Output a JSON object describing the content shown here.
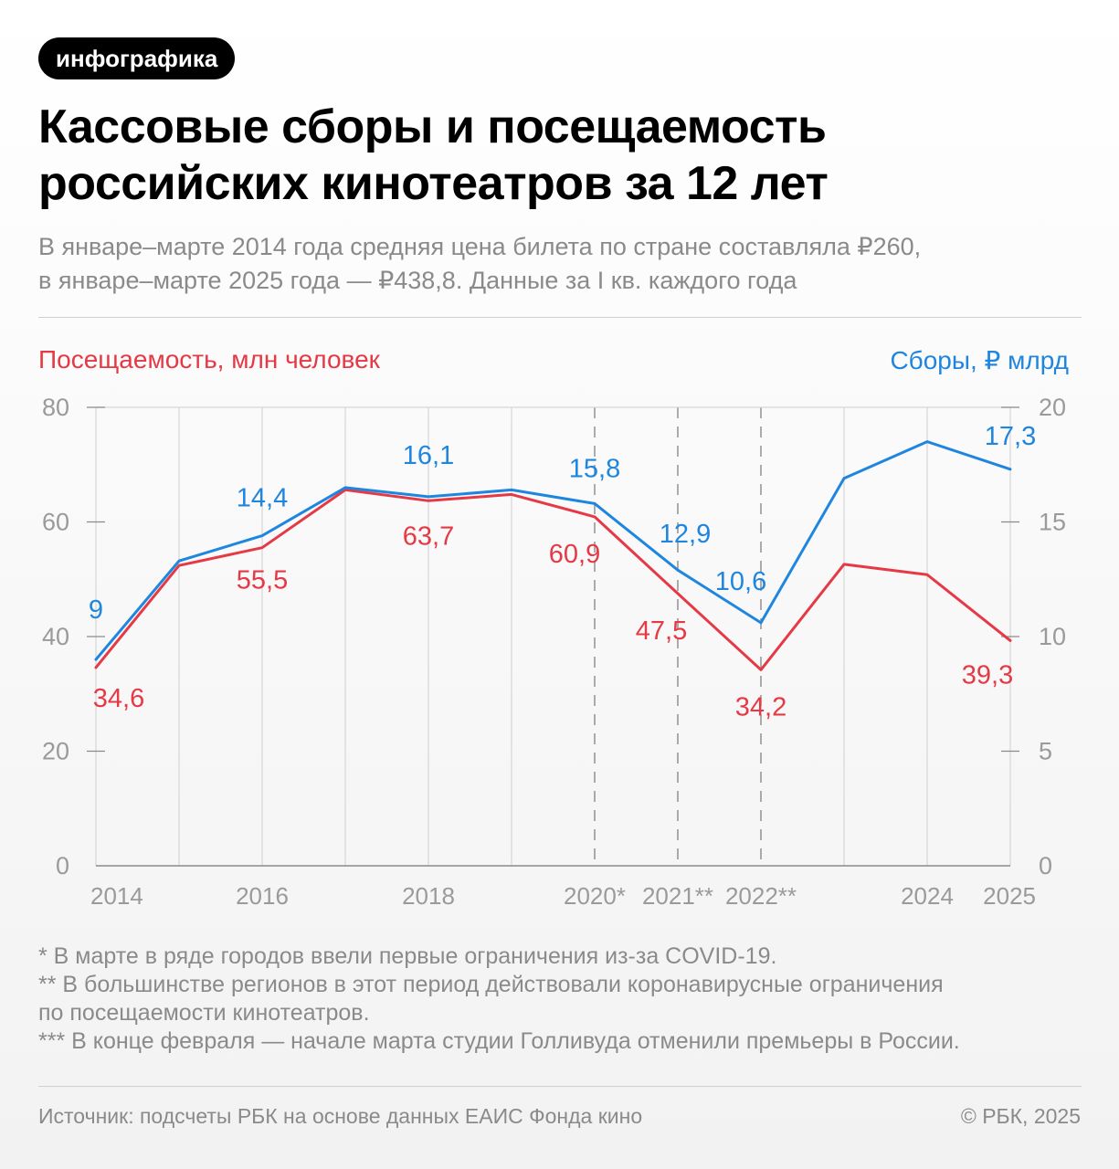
{
  "badge": "инфографика",
  "title": [
    "Кассовые сборы и посещаемость",
    "российских кинотеатров за 12 лет"
  ],
  "subtitle": [
    "В январе–марте 2014 года средняя цена билета по стране составляла ₽260,",
    "в январе–марте 2025 года — ₽438,8. Данные за I кв. каждого года"
  ],
  "footnotes": [
    "* В марте в ряде городов ввели первые ограничения из-за COVID-19.",
    "** В большинстве регионов в этот период действовали коронавирусные ограничения",
    "по посещаемости кинотеатров.",
    "*** В конце февраля — начале марта студии Голливуда отменили премьеры в России."
  ],
  "source": "Источник: подсчеты РБК на основе данных ЕАИС Фонда кино",
  "copyright": "© РБК, 2025",
  "colors": {
    "attendance": "#e63946",
    "revenue": "#1f86e0",
    "axis": "#9a9a9a",
    "grid": "#d6d6d6"
  },
  "chart_data": {
    "type": "line",
    "x": [
      2014,
      2015,
      2016,
      2017,
      2018,
      2019,
      2020,
      2021,
      2022,
      2023,
      2024,
      2025
    ],
    "x_tick_labels": [
      "2014",
      "",
      "2016",
      "",
      "2018",
      "",
      "2020*",
      "2021**",
      "2022**",
      "",
      "2024",
      "2025"
    ],
    "dashed_years": [
      2020,
      2021,
      2022
    ],
    "y_left": {
      "label": "Посещаемость, млн человек",
      "ticks": [
        "0",
        "20",
        "40",
        "60",
        "80"
      ],
      "lim": [
        0,
        80
      ]
    },
    "y_right": {
      "label": "Сборы, ₽ млрд",
      "ticks": [
        "0",
        "5",
        "10",
        "15",
        "20"
      ],
      "lim": [
        0,
        20
      ]
    },
    "series": [
      {
        "name": "Посещаемость, млн человек",
        "axis": "left",
        "values": [
          34.6,
          52.4,
          55.5,
          65.6,
          63.7,
          64.8,
          60.9,
          47.5,
          34.2,
          52.6,
          50.8,
          39.3
        ],
        "labels": [
          "34,6",
          "",
          "55,5",
          "",
          "63,7",
          "",
          "60,9",
          "47,5",
          "34,2",
          "",
          "",
          "39,3"
        ]
      },
      {
        "name": "Сборы, ₽ млрд",
        "axis": "right",
        "values": [
          9.0,
          13.3,
          14.4,
          16.5,
          16.1,
          16.4,
          15.8,
          12.9,
          10.6,
          16.9,
          18.5,
          17.3
        ],
        "labels": [
          "9",
          "",
          "14,4",
          "",
          "16,1",
          "",
          "15,8",
          "12,9",
          "10,6",
          "",
          "",
          "17,3"
        ]
      }
    ]
  }
}
